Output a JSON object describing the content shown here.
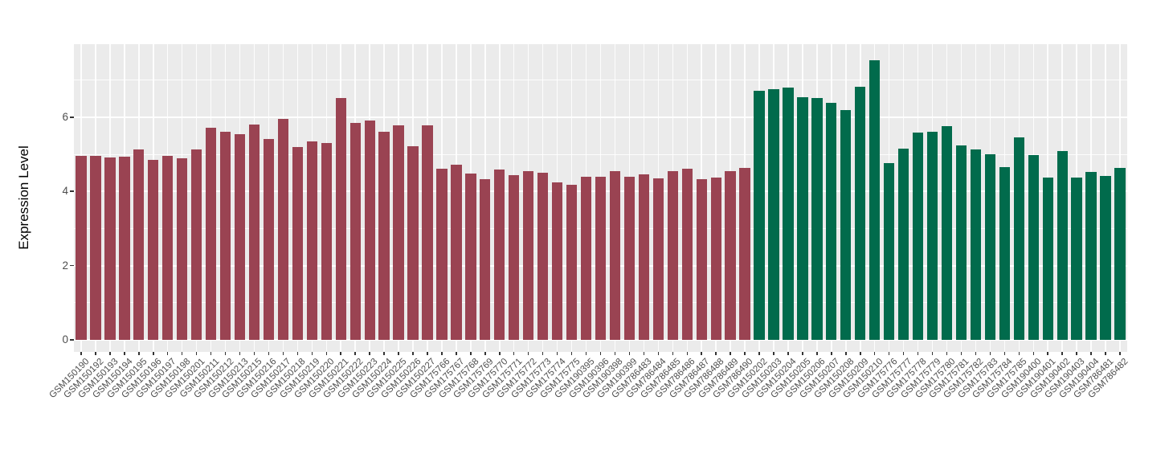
{
  "chart_data": {
    "type": "bar",
    "title": "",
    "xlabel": "",
    "ylabel": "Expression Level",
    "y_ticks": [
      "0",
      "2",
      "4",
      "6"
    ],
    "y_tick_values": [
      0,
      2,
      4,
      6
    ],
    "y_minor_values": [
      1,
      3,
      5,
      7
    ],
    "ylim": [
      -0.33,
      7.95
    ],
    "grid": "on",
    "legend_position": "none",
    "panel_background": "#EBEBEB",
    "gridline_color": "#FFFFFF",
    "group_colors": {
      "red": "#9A4352",
      "green": "#016B4C"
    },
    "bars": [
      {
        "label": "GSM150190",
        "value": 4.96,
        "group": "red"
      },
      {
        "label": "GSM150192",
        "value": 4.96,
        "group": "red"
      },
      {
        "label": "GSM150193",
        "value": 4.91,
        "group": "red"
      },
      {
        "label": "GSM150194",
        "value": 4.94,
        "group": "red"
      },
      {
        "label": "GSM150195",
        "value": 5.14,
        "group": "red"
      },
      {
        "label": "GSM150196",
        "value": 4.84,
        "group": "red"
      },
      {
        "label": "GSM150197",
        "value": 4.95,
        "group": "red"
      },
      {
        "label": "GSM150198",
        "value": 4.89,
        "group": "red"
      },
      {
        "label": "GSM150201",
        "value": 5.14,
        "group": "red"
      },
      {
        "label": "GSM150211",
        "value": 5.71,
        "group": "red"
      },
      {
        "label": "GSM150212",
        "value": 5.61,
        "group": "red"
      },
      {
        "label": "GSM150213",
        "value": 5.54,
        "group": "red"
      },
      {
        "label": "GSM150215",
        "value": 5.8,
        "group": "red"
      },
      {
        "label": "GSM150216",
        "value": 5.42,
        "group": "red"
      },
      {
        "label": "GSM150217",
        "value": 5.95,
        "group": "red"
      },
      {
        "label": "GSM150218",
        "value": 5.2,
        "group": "red"
      },
      {
        "label": "GSM150219",
        "value": 5.34,
        "group": "red"
      },
      {
        "label": "GSM150220",
        "value": 5.31,
        "group": "red"
      },
      {
        "label": "GSM150221",
        "value": 6.52,
        "group": "red"
      },
      {
        "label": "GSM150222",
        "value": 5.84,
        "group": "red"
      },
      {
        "label": "GSM150223",
        "value": 5.91,
        "group": "red"
      },
      {
        "label": "GSM150224",
        "value": 5.61,
        "group": "red"
      },
      {
        "label": "GSM150225",
        "value": 5.79,
        "group": "red"
      },
      {
        "label": "GSM150226",
        "value": 5.22,
        "group": "red"
      },
      {
        "label": "GSM150227",
        "value": 5.78,
        "group": "red"
      },
      {
        "label": "GSM175766",
        "value": 4.62,
        "group": "red"
      },
      {
        "label": "GSM175767",
        "value": 4.71,
        "group": "red"
      },
      {
        "label": "GSM175768",
        "value": 4.47,
        "group": "red"
      },
      {
        "label": "GSM175769",
        "value": 4.32,
        "group": "red"
      },
      {
        "label": "GSM175770",
        "value": 4.58,
        "group": "red"
      },
      {
        "label": "GSM175771",
        "value": 4.44,
        "group": "red"
      },
      {
        "label": "GSM175772",
        "value": 4.54,
        "group": "red"
      },
      {
        "label": "GSM175773",
        "value": 4.51,
        "group": "red"
      },
      {
        "label": "GSM175774",
        "value": 4.25,
        "group": "red"
      },
      {
        "label": "GSM175775",
        "value": 4.18,
        "group": "red"
      },
      {
        "label": "GSM190395",
        "value": 4.4,
        "group": "red"
      },
      {
        "label": "GSM190396",
        "value": 4.4,
        "group": "red"
      },
      {
        "label": "GSM190398",
        "value": 4.55,
        "group": "red"
      },
      {
        "label": "GSM190399",
        "value": 4.39,
        "group": "red"
      },
      {
        "label": "GSM786483",
        "value": 4.46,
        "group": "red"
      },
      {
        "label": "GSM786484",
        "value": 4.36,
        "group": "red"
      },
      {
        "label": "GSM786485",
        "value": 4.55,
        "group": "red"
      },
      {
        "label": "GSM786486",
        "value": 4.6,
        "group": "red"
      },
      {
        "label": "GSM786487",
        "value": 4.32,
        "group": "red"
      },
      {
        "label": "GSM786488",
        "value": 4.37,
        "group": "red"
      },
      {
        "label": "GSM786489",
        "value": 4.54,
        "group": "red"
      },
      {
        "label": "GSM786490",
        "value": 4.63,
        "group": "red"
      },
      {
        "label": "GSM150202",
        "value": 6.7,
        "group": "green"
      },
      {
        "label": "GSM150203",
        "value": 6.75,
        "group": "green"
      },
      {
        "label": "GSM150204",
        "value": 6.79,
        "group": "green"
      },
      {
        "label": "GSM150205",
        "value": 6.53,
        "group": "green"
      },
      {
        "label": "GSM150206",
        "value": 6.51,
        "group": "green"
      },
      {
        "label": "GSM150207",
        "value": 6.38,
        "group": "green"
      },
      {
        "label": "GSM150208",
        "value": 6.18,
        "group": "green"
      },
      {
        "label": "GSM150209",
        "value": 6.81,
        "group": "green"
      },
      {
        "label": "GSM150210",
        "value": 7.54,
        "group": "green"
      },
      {
        "label": "GSM175776",
        "value": 4.77,
        "group": "green"
      },
      {
        "label": "GSM175777",
        "value": 5.15,
        "group": "green"
      },
      {
        "label": "GSM175778",
        "value": 5.59,
        "group": "green"
      },
      {
        "label": "GSM175779",
        "value": 5.61,
        "group": "green"
      },
      {
        "label": "GSM175780",
        "value": 5.76,
        "group": "green"
      },
      {
        "label": "GSM175781",
        "value": 5.24,
        "group": "green"
      },
      {
        "label": "GSM175782",
        "value": 5.14,
        "group": "green"
      },
      {
        "label": "GSM175783",
        "value": 5.0,
        "group": "green"
      },
      {
        "label": "GSM175784",
        "value": 4.66,
        "group": "green"
      },
      {
        "label": "GSM175785",
        "value": 5.46,
        "group": "green"
      },
      {
        "label": "GSM190400",
        "value": 4.97,
        "group": "green"
      },
      {
        "label": "GSM190401",
        "value": 4.38,
        "group": "green"
      },
      {
        "label": "GSM190402",
        "value": 5.08,
        "group": "green"
      },
      {
        "label": "GSM190403",
        "value": 4.37,
        "group": "green"
      },
      {
        "label": "GSM190404",
        "value": 4.52,
        "group": "green"
      },
      {
        "label": "GSM786481",
        "value": 4.42,
        "group": "green"
      },
      {
        "label": "GSM786482",
        "value": 4.63,
        "group": "green"
      }
    ]
  }
}
